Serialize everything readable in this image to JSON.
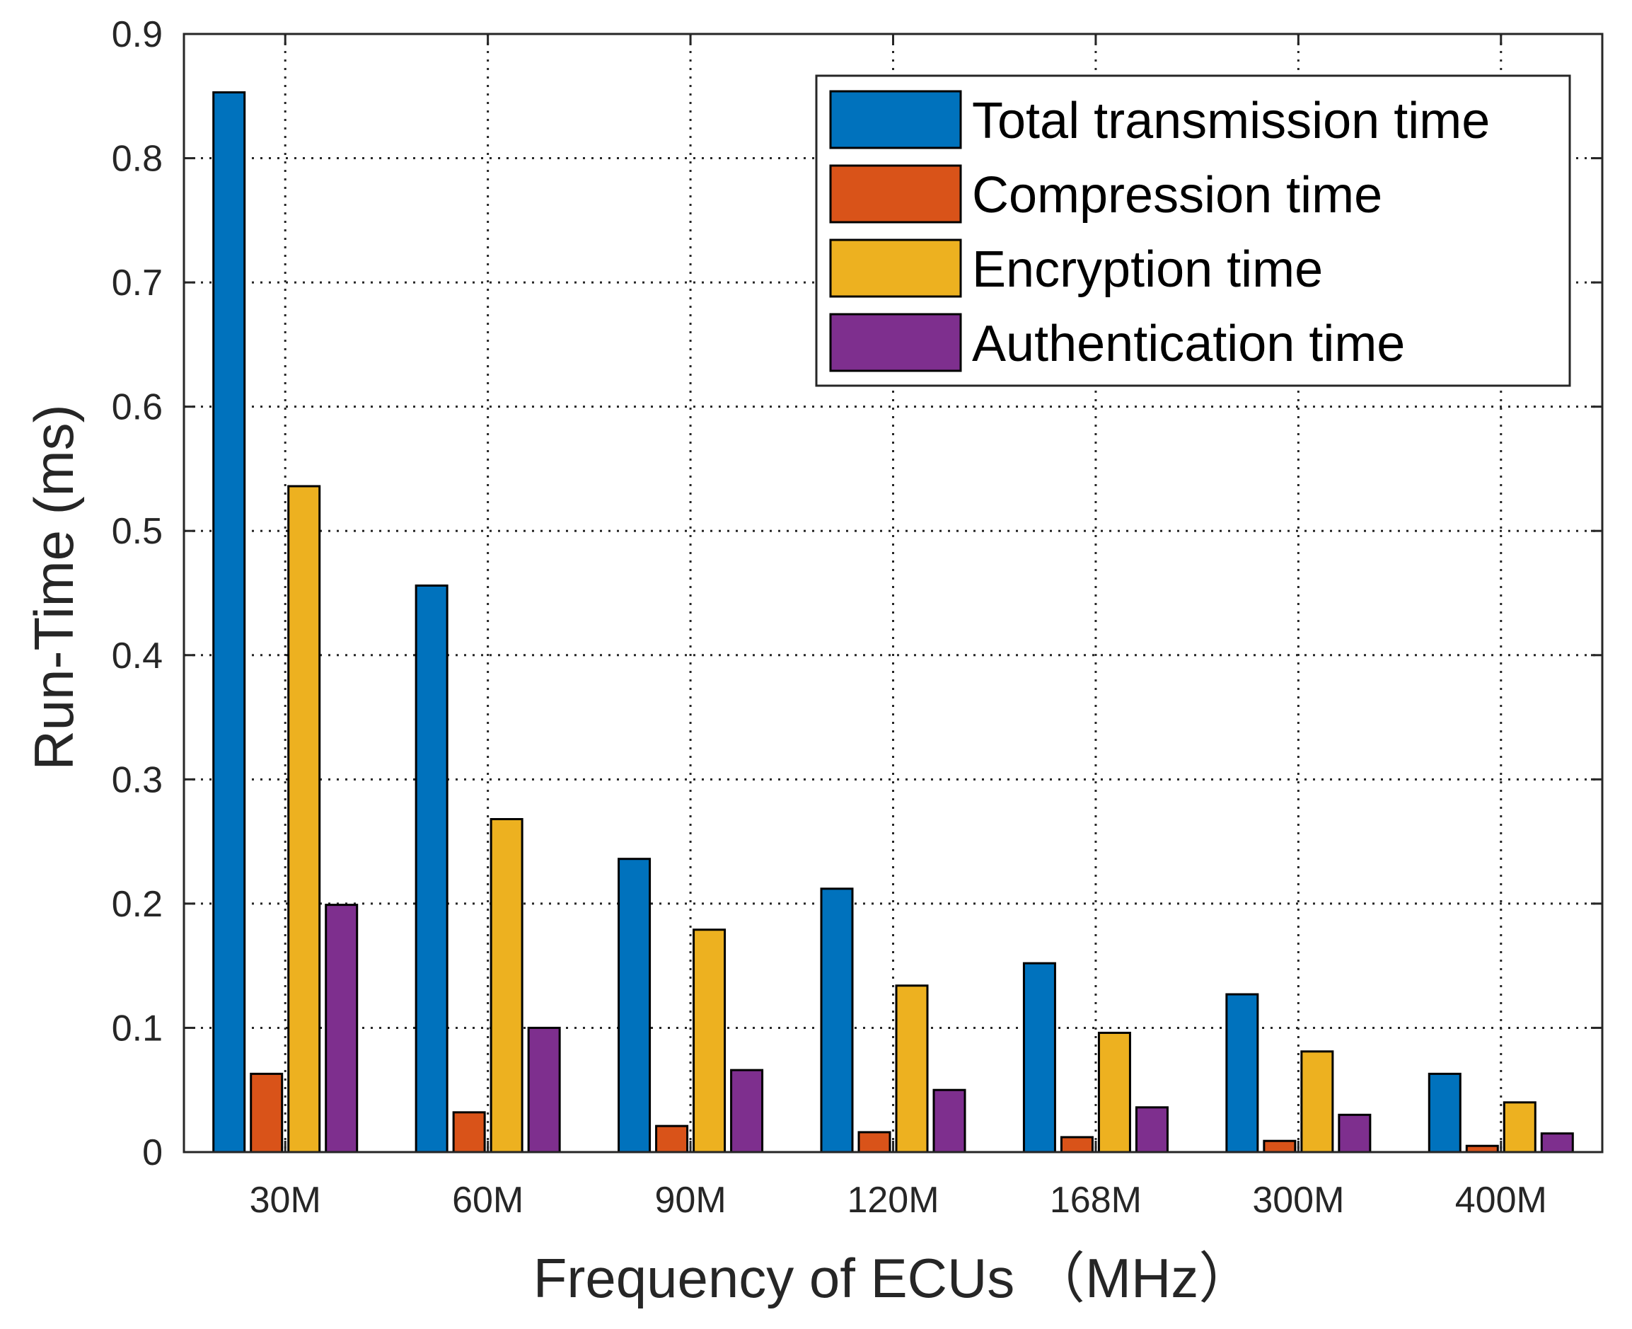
{
  "chart_data": {
    "type": "bar",
    "xlabel": "Frequency of ECUs （MHz）",
    "ylabel": "Run-Time (ms)",
    "ylim": [
      0,
      0.9
    ],
    "yticks": [
      0,
      0.1,
      0.2,
      0.3,
      0.4,
      0.5,
      0.6,
      0.7,
      0.8,
      0.9
    ],
    "grid": true,
    "legend_position": "top-right",
    "categories": [
      "30M",
      "60M",
      "90M",
      "120M",
      "168M",
      "300M",
      "400M"
    ],
    "series": [
      {
        "name": "Total transmission time",
        "color": "#0072BD",
        "values": [
          0.853,
          0.456,
          0.236,
          0.212,
          0.152,
          0.127,
          0.063
        ]
      },
      {
        "name": "Compression time",
        "color": "#D95319",
        "values": [
          0.063,
          0.032,
          0.021,
          0.016,
          0.012,
          0.009,
          0.005
        ]
      },
      {
        "name": "Encryption time",
        "color": "#EDB120",
        "values": [
          0.536,
          0.268,
          0.179,
          0.134,
          0.096,
          0.081,
          0.04
        ]
      },
      {
        "name": "Authentication time",
        "color": "#7E2F8E",
        "values": [
          0.199,
          0.1,
          0.066,
          0.05,
          0.036,
          0.03,
          0.015
        ]
      }
    ]
  }
}
